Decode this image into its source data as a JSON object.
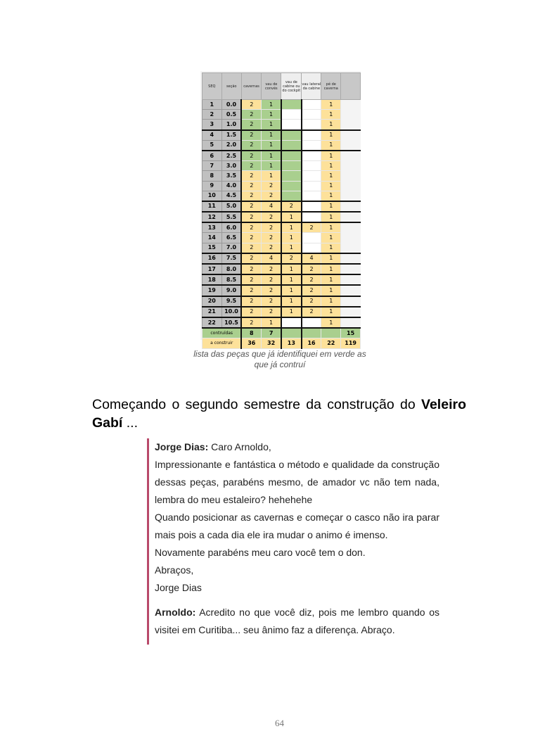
{
  "table": {
    "headers": [
      "SEQ",
      "seção",
      "cavernas",
      "vau de convés",
      "vau de cabine ou do cockpit",
      "vau lateral da cabine",
      "pé de caverna"
    ],
    "rows": [
      [
        "1",
        "0.0",
        "2",
        "1",
        "",
        "",
        "1"
      ],
      [
        "2",
        "0.5",
        "2",
        "1",
        "",
        "",
        "1"
      ],
      [
        "3",
        "1.0",
        "2",
        "1",
        "",
        "",
        "1"
      ],
      [
        "4",
        "1.5",
        "2",
        "1",
        "",
        "",
        "1"
      ],
      [
        "5",
        "2.0",
        "2",
        "1",
        "",
        "",
        "1"
      ],
      [
        "6",
        "2.5",
        "2",
        "1",
        "",
        "",
        "1"
      ],
      [
        "7",
        "3.0",
        "2",
        "1",
        "",
        "",
        "1"
      ],
      [
        "8",
        "3.5",
        "2",
        "1",
        "",
        "",
        "1"
      ],
      [
        "9",
        "4.0",
        "2",
        "2",
        "",
        "",
        "1"
      ],
      [
        "10",
        "4.5",
        "2",
        "2",
        "",
        "",
        "1"
      ],
      [
        "11",
        "5.0",
        "2",
        "4",
        "2",
        "",
        "1"
      ],
      [
        "12",
        "5.5",
        "2",
        "2",
        "1",
        "",
        "1"
      ],
      [
        "13",
        "6.0",
        "2",
        "2",
        "1",
        "2",
        "1"
      ],
      [
        "14",
        "6.5",
        "2",
        "2",
        "1",
        "",
        "1"
      ],
      [
        "15",
        "7.0",
        "2",
        "2",
        "1",
        "",
        "1"
      ],
      [
        "16",
        "7.5",
        "2",
        "4",
        "2",
        "4",
        "1"
      ],
      [
        "17",
        "8.0",
        "2",
        "2",
        "1",
        "2",
        "1"
      ],
      [
        "18",
        "8.5",
        "2",
        "2",
        "1",
        "2",
        "1"
      ],
      [
        "19",
        "9.0",
        "2",
        "2",
        "1",
        "2",
        "1"
      ],
      [
        "20",
        "9.5",
        "2",
        "2",
        "1",
        "2",
        "1"
      ],
      [
        "21",
        "10.0",
        "2",
        "2",
        "1",
        "2",
        "1"
      ],
      [
        "22",
        "10.5",
        "2",
        "1",
        "",
        "",
        "1"
      ]
    ],
    "cell_colors": [
      "yggwwy",
      "ggwwy",
      "ggwwy",
      "gggwy",
      "gggwy",
      "gggwy",
      "gggwy",
      "yygwy",
      "yygwy",
      "yygwy",
      "yyywy",
      "yyywy",
      "yyyyy",
      "yyywy",
      "yyywy",
      "yyyyy",
      "yyyyy",
      "yyyyy",
      "yyyyy",
      "yyyyy",
      "yyyyy",
      "yywwy"
    ],
    "built": {
      "label": "contruídas",
      "values": [
        "8",
        "7",
        "",
        "",
        "",
        "15"
      ]
    },
    "to_build": {
      "label": "a construir",
      "values": [
        "36",
        "32",
        "13",
        "16",
        "22",
        "119"
      ]
    },
    "colors": {
      "built": "#a9cf8e",
      "to_build": "#fde19a",
      "key": "#c0c0c0"
    }
  },
  "caption": "lista das peças que já identifiquei em verde as que já contruí",
  "heading": {
    "text": "Começando o segundo semestre da construção do ",
    "bold": "Veleiro Gabí",
    "tail": " ..."
  },
  "quote": {
    "author1": "Jorge Dias:",
    "lines": [
      " Caro Arnoldo,",
      "Impressionante e fantástica o método e qualidade da construção dessas peças, parabéns mesmo, de amador vc não tem nada, lembra do meu estaleiro? hehehehe",
      "Quando posicionar as cavernas e começar o casco não ira parar mais pois a cada dia ele ira mudar o animo é imenso.",
      "Novamente parabéns meu caro você tem o don.",
      "Abraços,",
      "Jorge Dias"
    ],
    "author2": "Arnoldo:",
    "reply": " Acredito no que você diz, pois me lembro quando os visitei em Curitiba... seu ânimo faz a diferença. Abraço.",
    "accent": "#b94a6b"
  },
  "page_number": "64"
}
